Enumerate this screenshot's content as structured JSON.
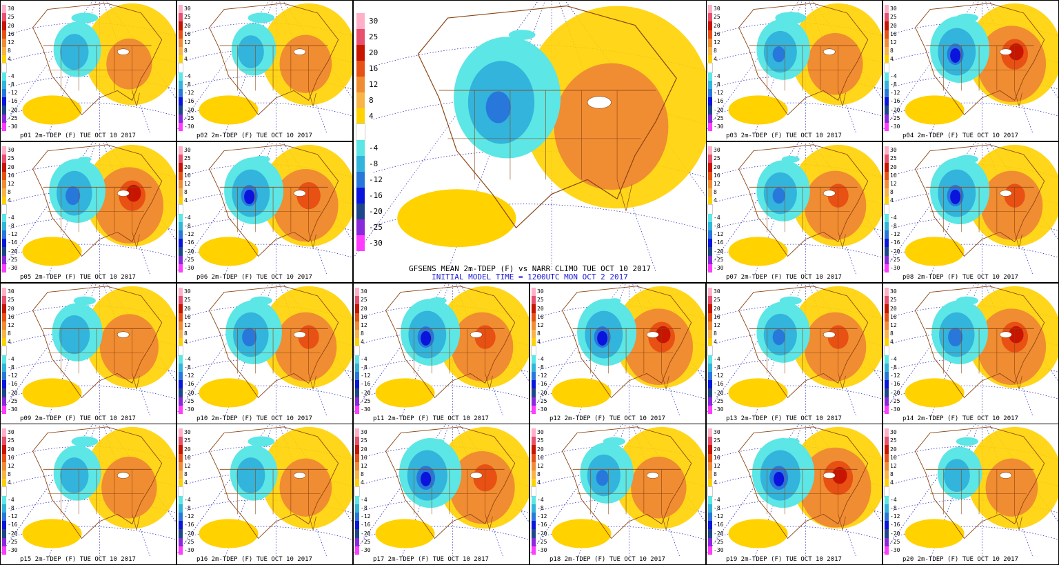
{
  "colorbar": {
    "levels": [
      "30",
      "25",
      "20",
      "16",
      "12",
      "8",
      "4",
      "",
      "-4",
      "-8",
      "-12",
      "-16",
      "-20",
      "-25",
      "-30"
    ],
    "colors": [
      "#ffb0c8",
      "#e8506e",
      "#c81400",
      "#e85014",
      "#f08c32",
      "#f8b446",
      "#ffd200",
      "#ffffff",
      "#5ce6e6",
      "#32b4dc",
      "#2878dc",
      "#0a14dc",
      "#1e468c",
      "#8c28dc",
      "#ff3cff"
    ]
  },
  "main": {
    "title": "GFSENS MEAN 2m-TDEP (F) vs NARR CLIMO TUE OCT 10 2017",
    "subtitle": "INITIAL MODEL TIME = 1200UTC MON OCT 2 2017",
    "subtitle_color": "#1a1ad2"
  },
  "panels": [
    {
      "label": "p01 2m-TDEP (F) TUE OCT 10 2017"
    },
    {
      "label": "p02 2m-TDEP (F) TUE OCT 10 2017"
    },
    {
      "label": "p03 2m-TDEP (F) TUE OCT 10 2017"
    },
    {
      "label": "p04 2m-TDEP (F) TUE OCT 10 2017"
    },
    {
      "label": "p05 2m-TDEP (F) TUE OCT 10 2017"
    },
    {
      "label": "p06 2m-TDEP (F) TUE OCT 10 2017"
    },
    {
      "label": "p07 2m-TDEP (F) TUE OCT 10 2017"
    },
    {
      "label": "p08 2m-TDEP (F) TUE OCT 10 2017"
    },
    {
      "label": "p09 2m-TDEP (F) TUE OCT 10 2017"
    },
    {
      "label": "p10 2m-TDEP (F) TUE OCT 10 2017"
    },
    {
      "label": "p11 2m-TDEP (F) TUE OCT 10 2017"
    },
    {
      "label": "p12 2m-TDEP (F) TUE OCT 10 2017"
    },
    {
      "label": "p13 2m-TDEP (F) TUE OCT 10 2017"
    },
    {
      "label": "p14 2m-TDEP (F) TUE OCT 10 2017"
    },
    {
      "label": "p15 2m-TDEP (F) TUE OCT 10 2017"
    },
    {
      "label": "p16 2m-TDEP (F) TUE OCT 10 2017"
    },
    {
      "label": "p17 2m-TDEP (F) TUE OCT 10 2017"
    },
    {
      "label": "p18 2m-TDEP (F) TUE OCT 10 2017"
    },
    {
      "label": "p19 2m-TDEP (F) TUE OCT 10 2017"
    },
    {
      "label": "p20 2m-TDEP (F) TUE OCT 10 2017"
    }
  ]
}
